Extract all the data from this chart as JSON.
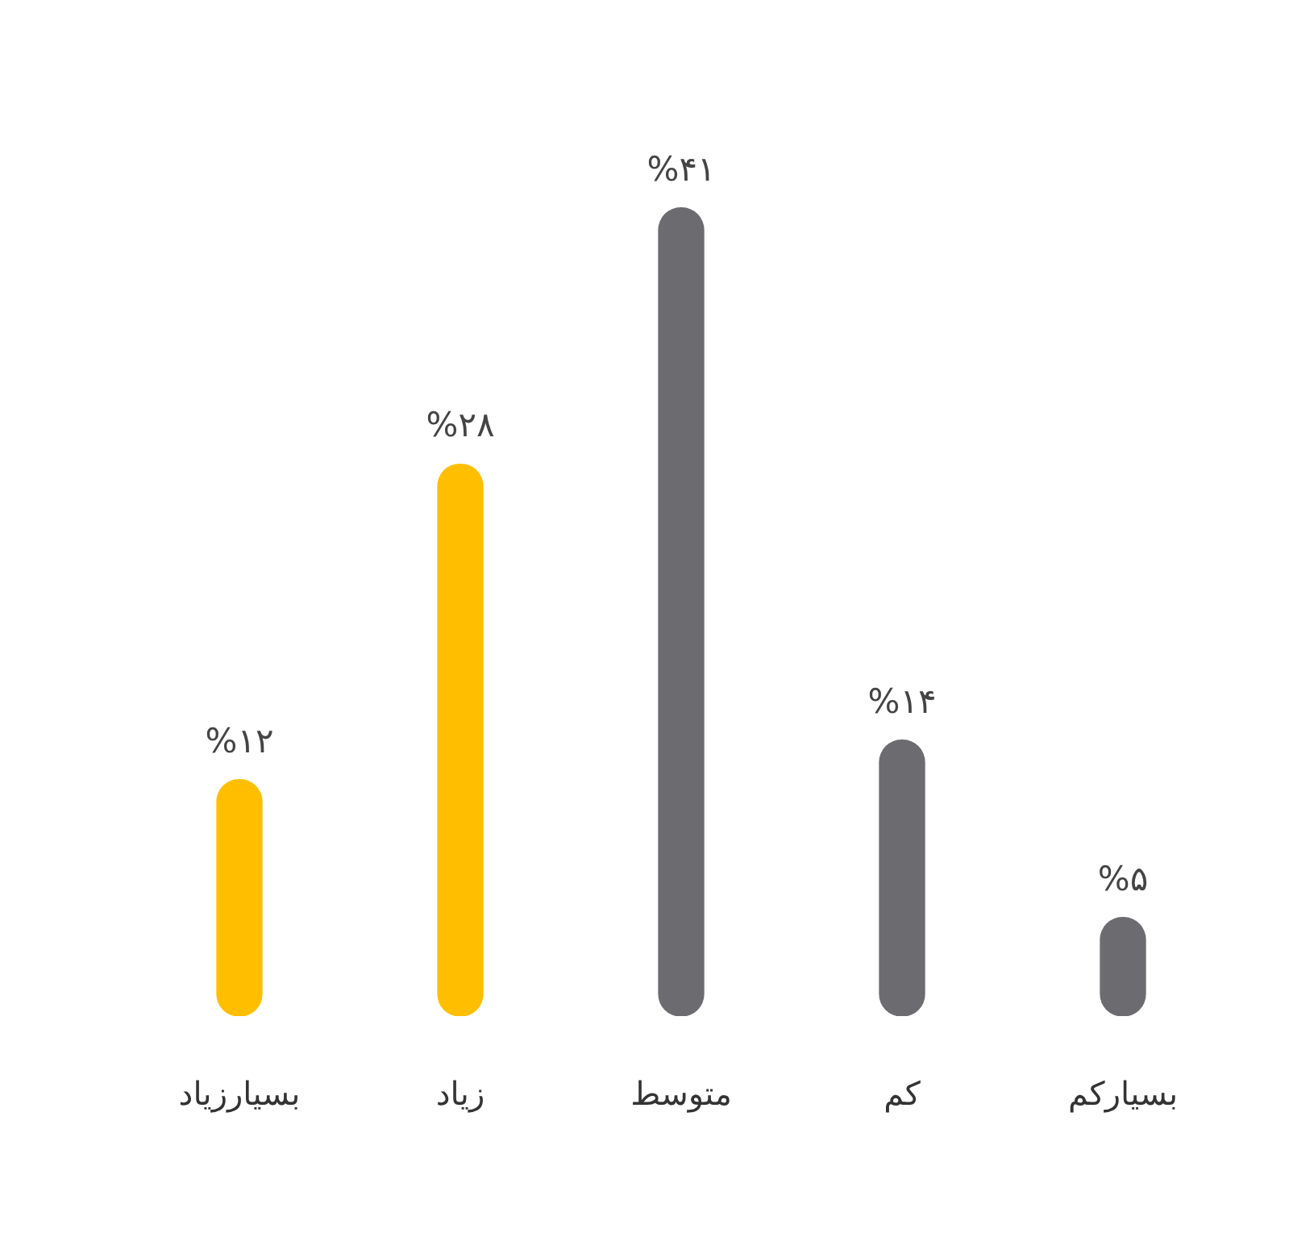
{
  "chart_data": {
    "type": "bar",
    "categories": [
      "بسیارزیاد",
      "زیاد",
      "متوسط",
      "کم",
      "بسیارکم"
    ],
    "values": [
      12,
      28,
      41,
      14,
      5
    ],
    "colors": [
      "#ffbf00",
      "#ffbf00",
      "#6c6b70",
      "#6c6b70",
      "#6c6b70"
    ],
    "value_labels": [
      "%۱۲",
      "%۲۸",
      "%۴۱",
      "%۱۴",
      "%۵"
    ],
    "grid": false,
    "tick_labels": "x"
  }
}
